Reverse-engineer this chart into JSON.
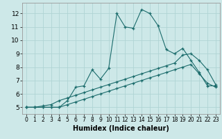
{
  "title": "",
  "xlabel": "Humidex (Indice chaleur)",
  "xlim": [
    -0.5,
    23.5
  ],
  "ylim": [
    4.5,
    12.8
  ],
  "xticks": [
    0,
    1,
    2,
    3,
    4,
    5,
    6,
    7,
    8,
    9,
    10,
    11,
    12,
    13,
    14,
    15,
    16,
    17,
    18,
    19,
    20,
    21,
    22,
    23
  ],
  "yticks": [
    5,
    6,
    7,
    8,
    9,
    10,
    11,
    12
  ],
  "background_color": "#cde8e8",
  "grid_color": "#b0d4d4",
  "line_color": "#1a6b6b",
  "line1_x": [
    0,
    1,
    2,
    3,
    4,
    5,
    6,
    7,
    8,
    9,
    10,
    11,
    12,
    13,
    14,
    15,
    16,
    17,
    18,
    19,
    20,
    21,
    22,
    23
  ],
  "line1_y": [
    5.0,
    5.0,
    5.0,
    5.0,
    5.0,
    5.5,
    6.5,
    6.6,
    7.8,
    7.1,
    7.9,
    12.0,
    11.0,
    10.9,
    12.3,
    12.0,
    11.1,
    9.3,
    9.0,
    9.4,
    8.5,
    7.6,
    6.6,
    6.6
  ],
  "line2_x": [
    0,
    1,
    2,
    3,
    4,
    5,
    6,
    7,
    8,
    9,
    10,
    11,
    12,
    13,
    14,
    15,
    16,
    17,
    18,
    19,
    20,
    21,
    22,
    23
  ],
  "line2_y": [
    5.0,
    5.0,
    5.1,
    5.2,
    5.5,
    5.7,
    5.9,
    6.1,
    6.3,
    6.5,
    6.7,
    6.9,
    7.1,
    7.3,
    7.5,
    7.7,
    7.9,
    8.1,
    8.3,
    8.9,
    9.0,
    8.5,
    7.8,
    6.7
  ],
  "line3_x": [
    0,
    1,
    2,
    3,
    4,
    5,
    6,
    7,
    8,
    9,
    10,
    11,
    12,
    13,
    14,
    15,
    16,
    17,
    18,
    19,
    20,
    21,
    22,
    23
  ],
  "line3_y": [
    5.0,
    5.0,
    5.0,
    5.0,
    5.0,
    5.2,
    5.4,
    5.6,
    5.8,
    6.0,
    6.2,
    6.4,
    6.6,
    6.8,
    7.0,
    7.2,
    7.4,
    7.6,
    7.8,
    8.0,
    8.2,
    7.5,
    6.8,
    6.5
  ],
  "tick_fontsize_x": 5.5,
  "tick_fontsize_y": 6.5,
  "xlabel_fontsize": 7.0
}
